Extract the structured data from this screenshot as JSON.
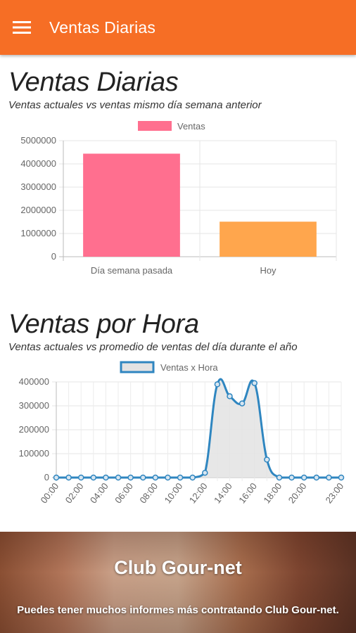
{
  "appbar": {
    "title": "Ventas Diarias",
    "menu_icon": "hamburger-menu-icon",
    "color": "#f66e25"
  },
  "section_daily": {
    "title": "Ventas Diarias",
    "subtitle": "Ventas actuales vs ventas mismo día semana anterior"
  },
  "section_hourly": {
    "title": "Ventas por Hora",
    "subtitle": "Ventas actuales vs promedio de ventas del día durante el año"
  },
  "promo": {
    "title": "Club Gour-net",
    "text": "Puedes tener muchos informes más contratando Club Gour-net."
  },
  "chart_data": [
    {
      "type": "bar",
      "title": "",
      "categories": [
        "Día semana pasada",
        "Hoy"
      ],
      "series": [
        {
          "name": "Ventas",
          "values": [
            4440000,
            1510000
          ]
        }
      ],
      "bar_colors": [
        "#ff6f8f",
        "#ffa64d"
      ],
      "legend_color": "#ff6f8f",
      "ylim": [
        0,
        5000000
      ],
      "yticks": [
        0,
        1000000,
        2000000,
        3000000,
        4000000,
        5000000
      ],
      "ytick_labels": [
        "0",
        "1000000",
        "2000000",
        "3000000",
        "4000000",
        "5000000"
      ],
      "legend": "top-center",
      "grid": true
    },
    {
      "type": "area",
      "title": "",
      "x": [
        "00:00",
        "01:00",
        "02:00",
        "03:00",
        "04:00",
        "05:00",
        "06:00",
        "07:00",
        "08:00",
        "09:00",
        "10:00",
        "11:00",
        "12:00",
        "13:00",
        "14:00",
        "15:00",
        "16:00",
        "17:00",
        "18:00",
        "19:00",
        "20:00",
        "21:00",
        "22:00",
        "23:00"
      ],
      "xtick_labels": [
        "00:00",
        "02:00",
        "04:00",
        "06:00",
        "08:00",
        "10:00",
        "12:00",
        "14:00",
        "16:00",
        "18:00",
        "20:00",
        "23:00"
      ],
      "series": [
        {
          "name": "Ventas x Hora",
          "values": [
            0,
            0,
            0,
            0,
            0,
            0,
            0,
            0,
            0,
            0,
            0,
            0,
            20000,
            390000,
            340000,
            310000,
            395000,
            75000,
            0,
            0,
            0,
            0,
            0,
            0
          ]
        }
      ],
      "line_color": "#2f86c0",
      "fill_color": "#e3e3e3",
      "ylim": [
        0,
        400000
      ],
      "yticks": [
        0,
        100000,
        200000,
        300000,
        400000
      ],
      "ytick_labels": [
        "0",
        "100000",
        "200000",
        "300000",
        "400000"
      ],
      "legend": "top-center",
      "grid": true
    }
  ]
}
